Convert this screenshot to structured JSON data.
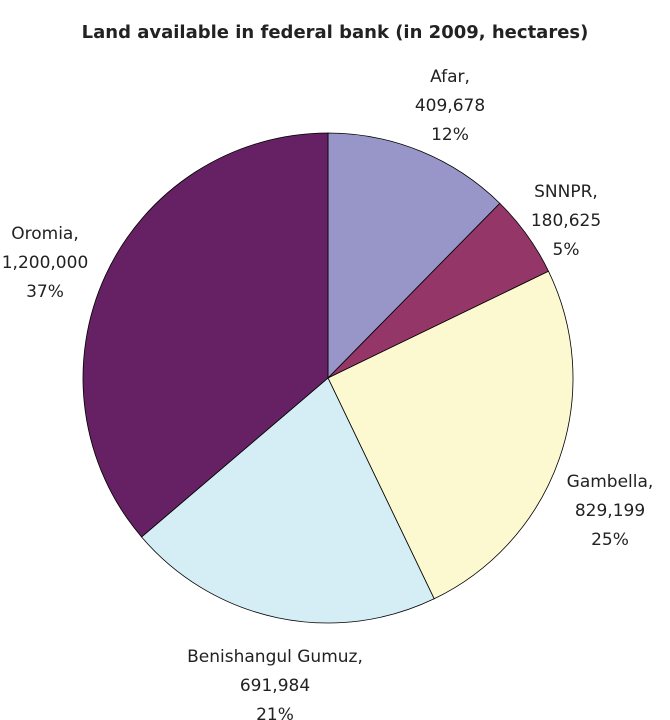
{
  "chart_data": {
    "type": "pie",
    "title": "Land available  in federal bank (in 2009, hectares)",
    "categories": [
      "Afar,",
      "SNNPR,",
      "Gambella,",
      "Benishangul Gumuz,",
      "Oromia,"
    ],
    "values": [
      409678,
      180625,
      829199,
      691984,
      1200000
    ],
    "value_labels": [
      "409,678",
      "180,625",
      "829,199",
      "691,984",
      "1,200,000"
    ],
    "percentages": [
      12,
      5,
      25,
      21,
      37
    ],
    "percentage_labels": [
      "12%",
      "5%",
      "25%",
      "21%",
      "37%"
    ],
    "colors": [
      "#9896c8",
      "#943768",
      "#fcf8d0",
      "#d5edf4",
      "#652163"
    ]
  }
}
